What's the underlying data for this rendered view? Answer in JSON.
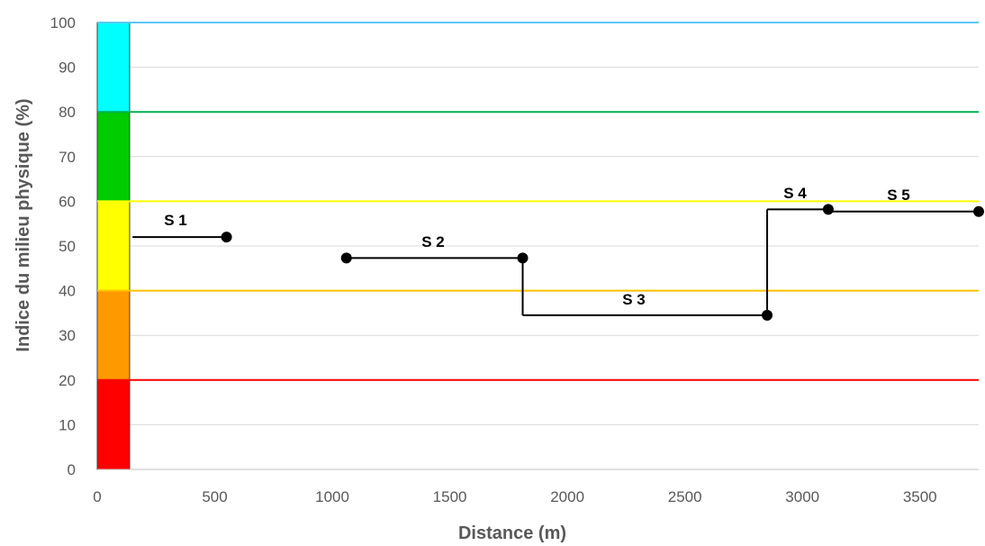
{
  "chart_data": {
    "type": "line",
    "xlabel": "Distance (m)",
    "ylabel": "Indice du milieu physique (%)",
    "xlim": [
      0,
      3750
    ],
    "ylim": [
      0,
      100
    ],
    "x_ticks": [
      "0",
      "500",
      "1000",
      "1500",
      "2000",
      "2500",
      "3000",
      "3500"
    ],
    "y_ticks": [
      "0",
      "10",
      "20",
      "30",
      "40",
      "50",
      "60",
      "70",
      "80",
      "90",
      "100"
    ],
    "grid": true,
    "class_bands": [
      {
        "from": 0,
        "to": 20,
        "color": "#FF0000"
      },
      {
        "from": 20,
        "to": 40,
        "color": "#FF9900"
      },
      {
        "from": 40,
        "to": 60,
        "color": "#FFFF00"
      },
      {
        "from": 60,
        "to": 80,
        "color": "#00CC00"
      },
      {
        "from": 80,
        "to": 100,
        "color": "#00FFFF"
      }
    ],
    "threshold_lines": [
      {
        "y": 20,
        "color": "#FF0000"
      },
      {
        "y": 40,
        "color": "#FFC000"
      },
      {
        "y": 60,
        "color": "#FFFF00"
      },
      {
        "y": 80,
        "color": "#00B050"
      },
      {
        "y": 100,
        "color": "#5BC8F5"
      }
    ],
    "segments": [
      {
        "label": "S 1",
        "x": [
          150,
          550
        ],
        "y": 52
      },
      {
        "label": "S 2",
        "x": [
          1060,
          1810
        ],
        "y": 47.3
      },
      {
        "label": "S 3",
        "x": [
          1810,
          2850
        ],
        "y": 34.5
      },
      {
        "label": "S 4",
        "x": [
          2850,
          3110
        ],
        "y": 58.2
      },
      {
        "label": "S 5",
        "x": [
          3110,
          3750
        ],
        "y": 57.7
      }
    ],
    "points": [
      {
        "x": 550,
        "y": 52
      },
      {
        "x": 1060,
        "y": 47.3
      },
      {
        "x": 1810,
        "y": 47.3
      },
      {
        "x": 2850,
        "y": 34.5
      },
      {
        "x": 3110,
        "y": 58.2
      },
      {
        "x": 3750,
        "y": 57.7
      }
    ]
  }
}
